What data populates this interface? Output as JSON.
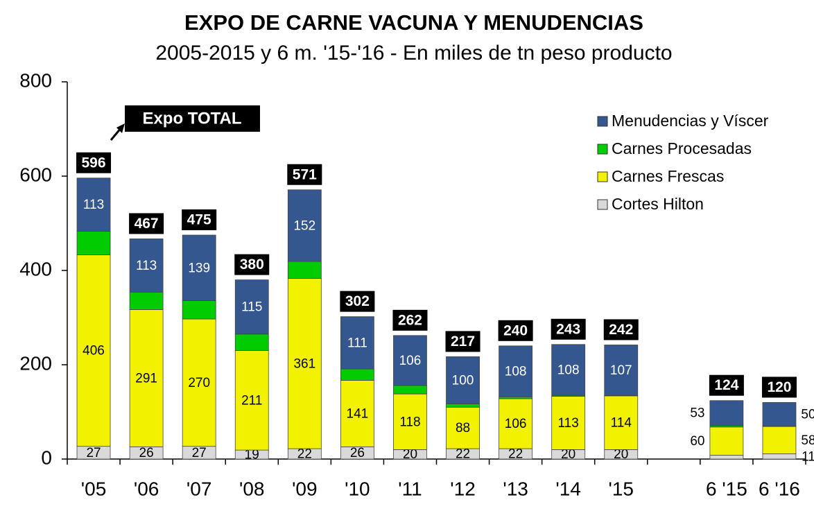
{
  "chart_data": {
    "type": "stacked_bar",
    "title": "EXPO DE CARNE VACUNA Y MENUDENCIAS",
    "subtitle": "2005-2015 y 6 m. '15-'16 - En miles de tn peso producto",
    "annotation": "Expo TOTAL",
    "categories": [
      "'05",
      "'06",
      "'07",
      "'08",
      "'09",
      "'10",
      "'11",
      "'12",
      "'13",
      "'14",
      "'15",
      null,
      "6 '15",
      "6 '16"
    ],
    "ylim": [
      0,
      800
    ],
    "yticks": [
      0,
      200,
      400,
      600,
      800
    ],
    "series": [
      {
        "name": "Cortes Hilton",
        "color": "#d9d9d9",
        "values": [
          27,
          26,
          27,
          19,
          22,
          26,
          20,
          22,
          22,
          20,
          20,
          null,
          8,
          11
        ],
        "value_labels": [
          "27",
          "26",
          "27",
          "19",
          "22",
          "26",
          "20",
          "22",
          "22",
          "20",
          "20",
          null,
          null,
          "11"
        ]
      },
      {
        "name": "Carnes Frescas",
        "color": "#f2f200",
        "values": [
          406,
          291,
          270,
          211,
          361,
          141,
          118,
          88,
          106,
          113,
          114,
          null,
          60,
          58
        ]
      },
      {
        "name": "Carnes Procesadas",
        "color": "#00cc00",
        "values": [
          50,
          37,
          39,
          35,
          36,
          24,
          18,
          7,
          4,
          2,
          1,
          null,
          3,
          1
        ],
        "labels_shown": false
      },
      {
        "name": "Menudencias y Víscer",
        "color": "#35578f",
        "values": [
          113,
          113,
          139,
          115,
          152,
          111,
          106,
          100,
          108,
          108,
          107,
          null,
          53,
          50
        ]
      }
    ],
    "totals": [
      596,
      467,
      475,
      380,
      571,
      302,
      262,
      217,
      240,
      243,
      242,
      null,
      124,
      120
    ]
  }
}
